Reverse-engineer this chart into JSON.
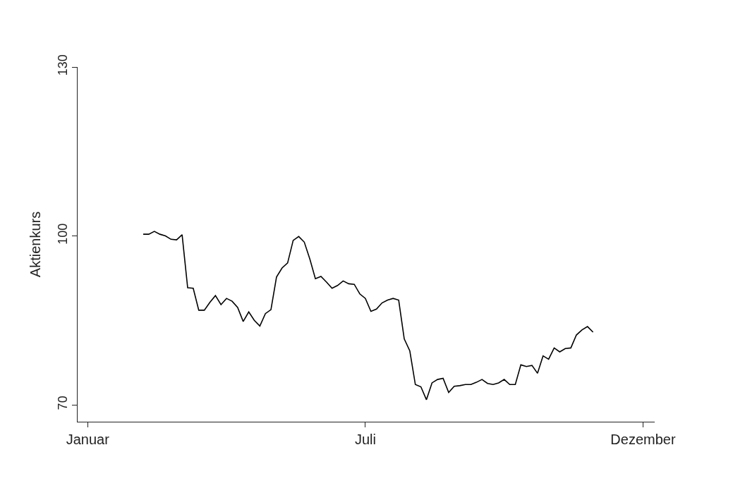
{
  "chart_data": {
    "type": "line",
    "ylabel": "Aktienkurs",
    "categories": [
      "Januar",
      null,
      null,
      null,
      null,
      null,
      null,
      null,
      null,
      null,
      null,
      null,
      null,
      null,
      null,
      null,
      null,
      null,
      null,
      null,
      null,
      null,
      null,
      null,
      null,
      null,
      null,
      null,
      null,
      null,
      null,
      null,
      null,
      null,
      null,
      null,
      null,
      null,
      null,
      null,
      null,
      null,
      null,
      null,
      null,
      null,
      null,
      null,
      null,
      null,
      "Juli",
      null,
      null,
      null,
      null,
      null,
      null,
      null,
      null,
      null,
      null,
      null,
      null,
      null,
      null,
      null,
      null,
      null,
      null,
      null,
      null,
      null,
      null,
      null,
      null,
      null,
      null,
      null,
      null,
      null,
      null,
      null,
      null,
      null,
      null,
      null,
      null,
      null,
      null,
      null,
      null,
      null,
      null,
      null,
      null,
      null,
      null,
      null,
      null,
      null,
      "Dezember"
    ],
    "ylim": [
      67,
      130
    ],
    "yticks": [
      70,
      100,
      130
    ],
    "marker": "none",
    "line_style": "solid",
    "series": [
      {
        "color": "#000000",
        "values": [
          null,
          null,
          null,
          null,
          null,
          null,
          null,
          null,
          null,
          null,
          100.3,
          100.3,
          100.8,
          100.3,
          100.0,
          99.4,
          99.3,
          100.2,
          90.8,
          90.7,
          86.8,
          86.8,
          88.2,
          89.4,
          87.8,
          88.9,
          88.4,
          87.3,
          84.8,
          86.5,
          85.0,
          84.0,
          86.2,
          86.9,
          92.7,
          94.3,
          95.2,
          99.2,
          99.9,
          98.9,
          95.9,
          92.4,
          92.8,
          91.8,
          90.7,
          91.2,
          92.0,
          91.5,
          91.4,
          89.7,
          88.9,
          86.6,
          87.0,
          88.1,
          88.6,
          88.9,
          88.6,
          81.7,
          79.6,
          73.6,
          73.2,
          70.9,
          73.9,
          74.5,
          74.7,
          72.2,
          73.3,
          73.4,
          73.6,
          73.6,
          74.0,
          74.5,
          73.8,
          73.6,
          73.9,
          74.5,
          73.6,
          73.6,
          77.1,
          76.8,
          77.0,
          75.6,
          78.7,
          78.1,
          80.1,
          79.4,
          80.0,
          80.1,
          82.4,
          83.3,
          83.9,
          82.9,
          null,
          null,
          null,
          null,
          null,
          null,
          null,
          null,
          null
        ]
      }
    ]
  }
}
